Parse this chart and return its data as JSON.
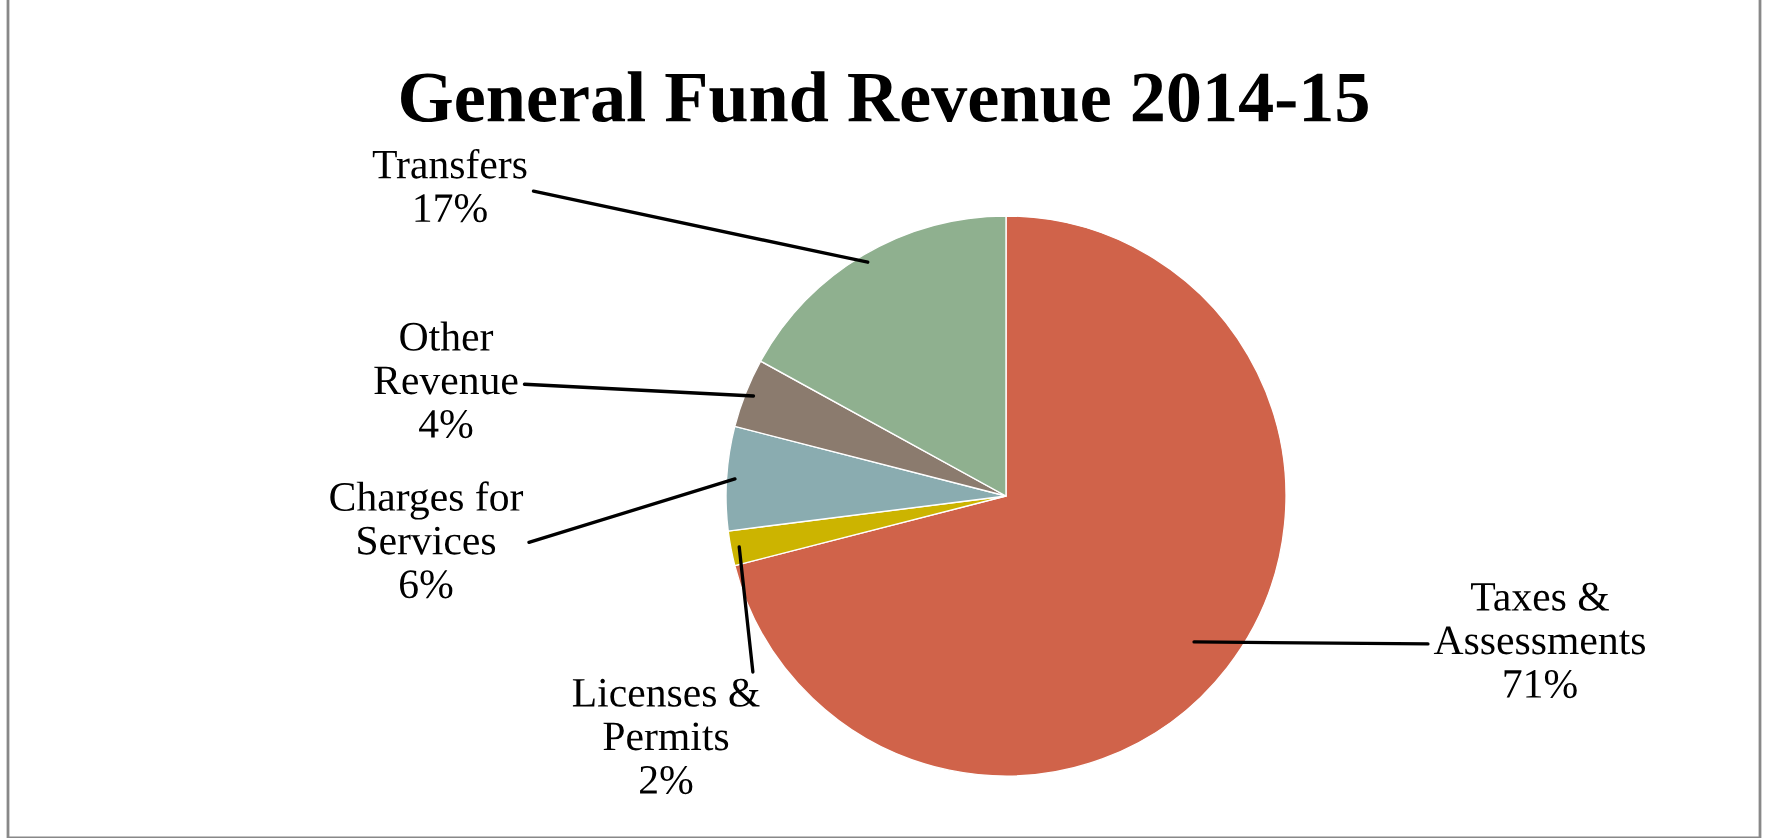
{
  "chart_data": {
    "type": "pie",
    "title": "General Fund Revenue 2014-15",
    "categories": [
      "Taxes &\nAssessments",
      "Licenses &\nPermits",
      "Charges for\nServices",
      "Other\nRevenue",
      "Transfers"
    ],
    "values": [
      71,
      2,
      6,
      4,
      17
    ],
    "value_labels": [
      "71%",
      "2%",
      "6%",
      "4%",
      "17%"
    ],
    "colors": [
      "#d0634a",
      "#ccb400",
      "#8aacb0",
      "#8b7b6e",
      "#8fb08f"
    ],
    "legend": false
  }
}
